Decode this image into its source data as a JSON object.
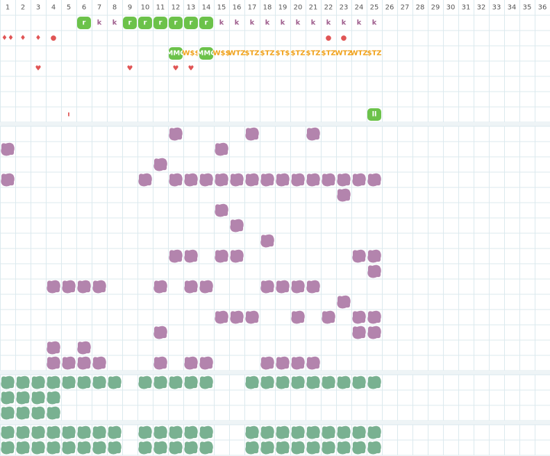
{
  "header": {
    "columns": [
      "1",
      "2",
      "3",
      "4",
      "5",
      "6",
      "7",
      "8",
      "9",
      "10",
      "11",
      "12",
      "13",
      "14",
      "15",
      "16",
      "17",
      "18",
      "19",
      "20",
      "21",
      "22",
      "23",
      "24",
      "25",
      "26",
      "27",
      "28",
      "29",
      "30",
      "31",
      "32",
      "33",
      "34",
      "35",
      "36"
    ]
  },
  "styles": {
    "badge": "#6cc24a",
    "purple": "#a0608f",
    "red": "#e05555",
    "orange": "#f0a21c",
    "badge_orange": "#6cc24a"
  },
  "top_rows": [
    [
      {
        "col": 6,
        "text": "r",
        "style": "badge"
      },
      {
        "col": 7,
        "text": "k",
        "style": "purple"
      },
      {
        "col": 8,
        "text": "k",
        "style": "purple"
      },
      {
        "col": 9,
        "text": "r",
        "style": "badge"
      },
      {
        "col": 10,
        "text": "r",
        "style": "badge"
      },
      {
        "col": 11,
        "text": "r",
        "style": "badge"
      },
      {
        "col": 12,
        "text": "r",
        "style": "badge"
      },
      {
        "col": 13,
        "text": "r",
        "style": "badge"
      },
      {
        "col": 14,
        "text": "r",
        "style": "badge"
      },
      {
        "col": 15,
        "text": "k",
        "style": "purple"
      },
      {
        "col": 16,
        "text": "k",
        "style": "purple"
      },
      {
        "col": 17,
        "text": "k",
        "style": "purple"
      },
      {
        "col": 18,
        "text": "k",
        "style": "purple"
      },
      {
        "col": 19,
        "text": "k",
        "style": "purple"
      },
      {
        "col": 20,
        "text": "k",
        "style": "purple"
      },
      {
        "col": 21,
        "text": "k",
        "style": "purple"
      },
      {
        "col": 22,
        "text": "k",
        "style": "purple"
      },
      {
        "col": 23,
        "text": "k",
        "style": "purple"
      },
      {
        "col": 24,
        "text": "k",
        "style": "purple"
      },
      {
        "col": 25,
        "text": "k",
        "style": "purple"
      }
    ],
    [
      {
        "col": 1,
        "text": "♦♦",
        "style": "red"
      },
      {
        "col": 2,
        "text": "♦",
        "style": "red"
      },
      {
        "col": 3,
        "text": "♦",
        "style": "red"
      },
      {
        "col": 4,
        "text": "●",
        "style": "red"
      },
      {
        "col": 22,
        "text": "●",
        "style": "red"
      },
      {
        "col": 23,
        "text": "●",
        "style": "red"
      }
    ],
    [
      {
        "col": 12,
        "text": "MMC",
        "style": "badge"
      },
      {
        "col": 13,
        "text": "W$$",
        "style": "orange"
      },
      {
        "col": 14,
        "text": "MMC",
        "style": "badge"
      },
      {
        "col": 15,
        "text": "W$$",
        "style": "orange"
      },
      {
        "col": 16,
        "text": "WTZ",
        "style": "orange"
      },
      {
        "col": 17,
        "text": "$TZ",
        "style": "orange"
      },
      {
        "col": 18,
        "text": "$TZ",
        "style": "orange"
      },
      {
        "col": 19,
        "text": "$T$",
        "style": "orange"
      },
      {
        "col": 20,
        "text": "$TZ",
        "style": "orange"
      },
      {
        "col": 21,
        "text": "$TZ",
        "style": "orange"
      },
      {
        "col": 22,
        "text": "$TZ",
        "style": "orange"
      },
      {
        "col": 23,
        "text": "WTZ",
        "style": "orange"
      },
      {
        "col": 24,
        "text": "WTZ",
        "style": "orange"
      },
      {
        "col": 25,
        "text": "$TZ",
        "style": "orange"
      }
    ],
    [
      {
        "col": 3,
        "text": "♥",
        "style": "red"
      },
      {
        "col": 9,
        "text": "♥",
        "style": "red"
      },
      {
        "col": 12,
        "text": "♥",
        "style": "red"
      },
      {
        "col": 13,
        "text": "♥",
        "style": "red"
      }
    ],
    [],
    [],
    [
      {
        "col": 5,
        "text": "ı",
        "style": "red"
      },
      {
        "col": 25,
        "text": "ll",
        "style": "badge"
      }
    ]
  ],
  "block_sections": [
    {
      "color": "#b384ad",
      "rows": [
        [
          12,
          17,
          21
        ],
        [
          1,
          15
        ],
        [
          11
        ],
        [
          1,
          10,
          12,
          13,
          14,
          15,
          16,
          17,
          18,
          19,
          20,
          21,
          22,
          23,
          24,
          25
        ],
        [
          23
        ],
        [
          15
        ],
        [
          16
        ],
        [
          18
        ],
        [
          12,
          13,
          15,
          16,
          24,
          25
        ],
        [
          25
        ],
        [
          4,
          5,
          6,
          7,
          11,
          13,
          14,
          18,
          19,
          20,
          21
        ],
        [
          23
        ],
        [
          15,
          16,
          17,
          20,
          22,
          24,
          25
        ],
        [
          11,
          24,
          25
        ],
        [
          4,
          6
        ],
        [
          4,
          5,
          6,
          7,
          11,
          13,
          14,
          18,
          19,
          20,
          21
        ]
      ]
    },
    {
      "color": "#79b191",
      "rows": [
        [
          1,
          2,
          3,
          4,
          5,
          6,
          7,
          8,
          10,
          11,
          12,
          13,
          14,
          17,
          18,
          19,
          20,
          21,
          22,
          23,
          24,
          25
        ],
        [
          1,
          2,
          3,
          4
        ],
        [
          1,
          2,
          3,
          4
        ]
      ]
    },
    {
      "color": "#79b191",
      "rows": [
        [
          1,
          2,
          3,
          4,
          5,
          6,
          7,
          8,
          10,
          11,
          12,
          13,
          14,
          17,
          18,
          19,
          20,
          21,
          22,
          23,
          24,
          25
        ],
        [
          1,
          2,
          3,
          4,
          5,
          6,
          7,
          8,
          10,
          11,
          12,
          13,
          14,
          17,
          18,
          19,
          20,
          21,
          22,
          23,
          24,
          25
        ]
      ]
    }
  ]
}
